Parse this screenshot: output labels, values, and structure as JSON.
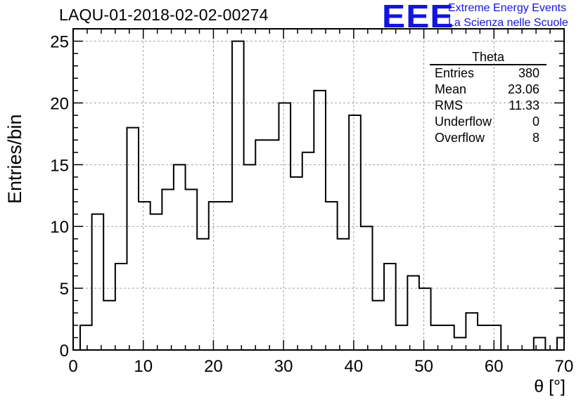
{
  "chart_data": {
    "type": "bar",
    "title": "LAQU-01-2018-02-02-00274",
    "xlabel": "θ [°]",
    "ylabel": "Entries/bin",
    "xlim": [
      0,
      70
    ],
    "ylim": [
      0,
      26
    ],
    "bin_width": 1.6666,
    "grid": true,
    "bins": [
      {
        "x0": 1.0,
        "x1": 2.67,
        "value": 2
      },
      {
        "x0": 2.67,
        "x1": 4.33,
        "value": 11
      },
      {
        "x0": 4.33,
        "x1": 6.0,
        "value": 4
      },
      {
        "x0": 6.0,
        "x1": 7.67,
        "value": 7
      },
      {
        "x0": 7.67,
        "x1": 9.33,
        "value": 18
      },
      {
        "x0": 9.33,
        "x1": 11.0,
        "value": 12
      },
      {
        "x0": 11.0,
        "x1": 12.67,
        "value": 11
      },
      {
        "x0": 12.67,
        "x1": 14.33,
        "value": 13
      },
      {
        "x0": 14.33,
        "x1": 16.0,
        "value": 15
      },
      {
        "x0": 16.0,
        "x1": 17.67,
        "value": 13
      },
      {
        "x0": 17.67,
        "x1": 19.33,
        "value": 9
      },
      {
        "x0": 19.33,
        "x1": 21.0,
        "value": 12
      },
      {
        "x0": 21.0,
        "x1": 22.67,
        "value": 12
      },
      {
        "x0": 22.67,
        "x1": 24.33,
        "value": 25
      },
      {
        "x0": 24.33,
        "x1": 26.0,
        "value": 15
      },
      {
        "x0": 26.0,
        "x1": 27.67,
        "value": 17
      },
      {
        "x0": 27.67,
        "x1": 29.33,
        "value": 17
      },
      {
        "x0": 29.33,
        "x1": 31.0,
        "value": 20
      },
      {
        "x0": 31.0,
        "x1": 32.67,
        "value": 14
      },
      {
        "x0": 32.67,
        "x1": 34.33,
        "value": 16
      },
      {
        "x0": 34.33,
        "x1": 36.0,
        "value": 21
      },
      {
        "x0": 36.0,
        "x1": 37.67,
        "value": 12
      },
      {
        "x0": 37.67,
        "x1": 39.33,
        "value": 9
      },
      {
        "x0": 39.33,
        "x1": 41.0,
        "value": 19
      },
      {
        "x0": 41.0,
        "x1": 42.67,
        "value": 10
      },
      {
        "x0": 42.67,
        "x1": 44.33,
        "value": 4
      },
      {
        "x0": 44.33,
        "x1": 46.0,
        "value": 7
      },
      {
        "x0": 46.0,
        "x1": 47.67,
        "value": 2
      },
      {
        "x0": 47.67,
        "x1": 49.33,
        "value": 6
      },
      {
        "x0": 49.33,
        "x1": 51.0,
        "value": 5
      },
      {
        "x0": 51.0,
        "x1": 52.67,
        "value": 2
      },
      {
        "x0": 52.67,
        "x1": 54.33,
        "value": 2
      },
      {
        "x0": 54.33,
        "x1": 56.0,
        "value": 1
      },
      {
        "x0": 56.0,
        "x1": 57.67,
        "value": 3
      },
      {
        "x0": 57.67,
        "x1": 59.33,
        "value": 2
      },
      {
        "x0": 59.33,
        "x1": 61.0,
        "value": 2
      },
      {
        "x0": 61.0,
        "x1": 65.67,
        "value": 0
      },
      {
        "x0": 65.67,
        "x1": 67.33,
        "value": 1
      },
      {
        "x0": 67.33,
        "x1": 69.0,
        "value": 0
      },
      {
        "x0": 69.0,
        "x1": 70.0,
        "value": 1
      }
    ],
    "x_ticks": [
      "0",
      "10",
      "20",
      "30",
      "40",
      "50",
      "60",
      "70"
    ],
    "y_ticks": [
      "0",
      "5",
      "10",
      "15",
      "20",
      "25"
    ]
  },
  "stats": {
    "title": "Theta",
    "rows": [
      {
        "label": "Entries",
        "value": "380"
      },
      {
        "label": "Mean",
        "value": "23.06"
      },
      {
        "label": "RMS",
        "value": "11.33"
      },
      {
        "label": "Underflow",
        "value": "0"
      },
      {
        "label": "Overflow",
        "value": "8"
      }
    ]
  },
  "logo": {
    "mark": "EEE",
    "line1": "Extreme Energy Events",
    "line2": "La Scienza nelle Scuole",
    "color": "#1414e0"
  }
}
